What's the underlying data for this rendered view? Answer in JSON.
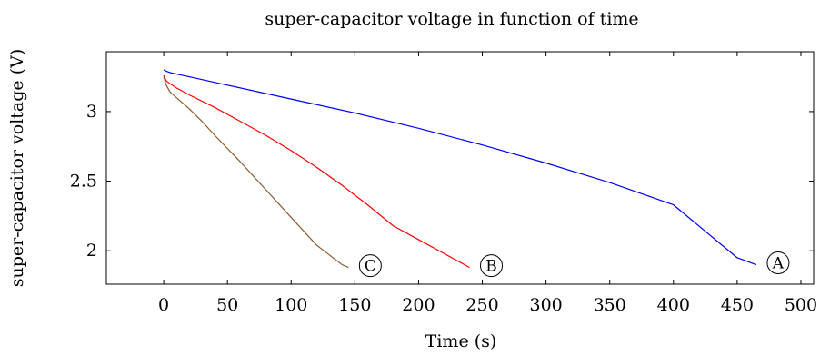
{
  "chart_data": {
    "type": "line",
    "title": "super-capacitor voltage in function of time",
    "xlabel": "Time (s)",
    "ylabel": "super-capacitor voltage (V)",
    "xlim": [
      -45,
      510
    ],
    "ylim": [
      1.76,
      3.43
    ],
    "xticks": [
      0,
      50,
      100,
      150,
      200,
      250,
      300,
      350,
      400,
      450,
      500
    ],
    "yticks": [
      2,
      2.5,
      3
    ],
    "ytick_labels": [
      "2",
      "2.5",
      "3"
    ],
    "grid": false,
    "series": [
      {
        "color": "#0000ff",
        "annotation": "A",
        "x": [
          0,
          2,
          5,
          10,
          20,
          50,
          100,
          150,
          200,
          250,
          300,
          350,
          400,
          450,
          465
        ],
        "y": [
          3.3,
          3.29,
          3.28,
          3.27,
          3.25,
          3.19,
          3.09,
          2.99,
          2.88,
          2.76,
          2.63,
          2.49,
          2.33,
          1.95,
          1.9
        ]
      },
      {
        "color": "#ff0000",
        "annotation": "B",
        "x": [
          0,
          2,
          5,
          10,
          20,
          40,
          60,
          80,
          100,
          120,
          140,
          160,
          180,
          200,
          220,
          240
        ],
        "y": [
          3.26,
          3.22,
          3.2,
          3.17,
          3.12,
          3.03,
          2.93,
          2.83,
          2.72,
          2.6,
          2.47,
          2.33,
          2.18,
          2.08,
          1.98,
          1.88
        ]
      },
      {
        "color": "#8b5a2b",
        "annotation": "C",
        "x": [
          0,
          2,
          5,
          10,
          20,
          30,
          40,
          60,
          80,
          100,
          120,
          140,
          145
        ],
        "y": [
          3.25,
          3.19,
          3.14,
          3.1,
          3.02,
          2.93,
          2.83,
          2.64,
          2.44,
          2.24,
          2.04,
          1.9,
          1.88
        ]
      }
    ]
  }
}
